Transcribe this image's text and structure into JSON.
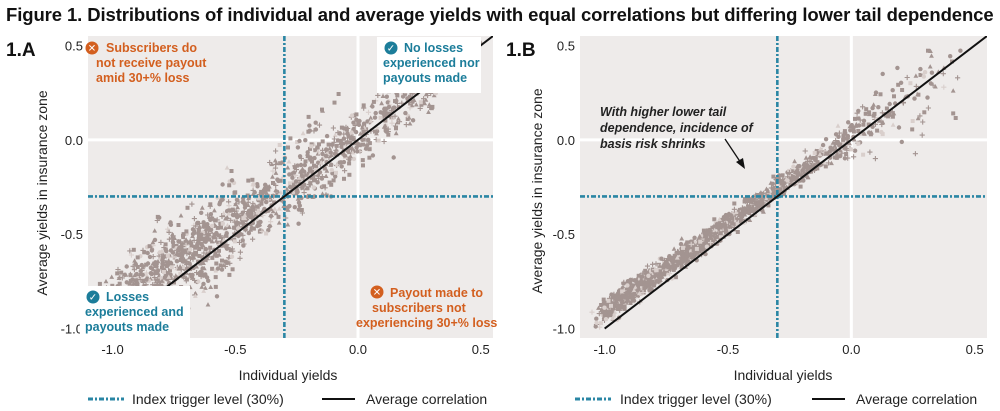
{
  "figure": {
    "title_lead": "Figure 1.",
    "title_rest": "Distributions of individual and average yields with equal correlations but differing lower tail dependence"
  },
  "colors": {
    "plot_bg": "#eeebea",
    "point": "#a39491",
    "point_light": "#d9cfcc",
    "trigger": "#2a86a4",
    "correlation": "#111111",
    "orange": "#d35f1f",
    "teal": "#1c7d9a"
  },
  "legend": {
    "trigger_label": "Index trigger level (30%)",
    "correlation_label": "Average correlation"
  },
  "chart_data": [
    {
      "type": "scatter",
      "panel": "1.A",
      "xlabel": "Individual yields",
      "ylabel": "Average yields in insurance zone",
      "xlim": [
        -1.1,
        0.55
      ],
      "ylim": [
        -1.05,
        0.55
      ],
      "x_ticks": [
        -1.0,
        -0.5,
        0.0,
        0.5
      ],
      "x_tick_labels": [
        "-1.0",
        "-0.5",
        "0.0",
        "0.5"
      ],
      "y_ticks": [
        0.5,
        0.0,
        -0.5,
        -1.0
      ],
      "y_tick_labels": [
        "0.5",
        "0.0",
        "-0.5",
        "-1.0"
      ],
      "trigger_level": -0.3,
      "correlation_line": [
        [
          -1.0,
          -1.0
        ],
        [
          0.55,
          0.55
        ]
      ],
      "tail_dependence": "low",
      "annotations": [
        {
          "icon": "cross",
          "color": "orange",
          "lines": [
            "Subscribers do",
            "not receive payout",
            "amid 30+% loss"
          ]
        },
        {
          "icon": "check",
          "color": "teal",
          "lines": [
            "No losses",
            "experienced nor",
            "payouts made"
          ]
        },
        {
          "icon": "check",
          "color": "teal",
          "lines": [
            "Losses",
            "experienced and",
            "payouts made"
          ]
        },
        {
          "icon": "cross",
          "color": "orange",
          "lines": [
            "Payout made to",
            "subscribers not",
            "experiencing 30+% loss"
          ]
        }
      ]
    },
    {
      "type": "scatter",
      "panel": "1.B",
      "xlabel": "Individual yields",
      "ylabel": "Average yields in insurance zone",
      "xlim": [
        -1.1,
        0.55
      ],
      "ylim": [
        -1.05,
        0.55
      ],
      "x_ticks": [
        -1.0,
        -0.5,
        0.0,
        0.5
      ],
      "x_tick_labels": [
        "-1.0",
        "-0.5",
        "0.0",
        "0.5"
      ],
      "y_ticks": [
        0.5,
        0.0,
        -0.5,
        -1.0
      ],
      "y_tick_labels": [
        "0.5",
        "0.0",
        "-0.5",
        "-1.0"
      ],
      "trigger_level": -0.3,
      "correlation_line": [
        [
          -1.0,
          -1.0
        ],
        [
          0.55,
          0.55
        ]
      ],
      "tail_dependence": "high",
      "annotations": [
        {
          "icon": "none",
          "color": "dark",
          "lines": [
            "With higher lower tail",
            "dependence, incidence of",
            "basis risk shrinks"
          ]
        }
      ]
    }
  ]
}
